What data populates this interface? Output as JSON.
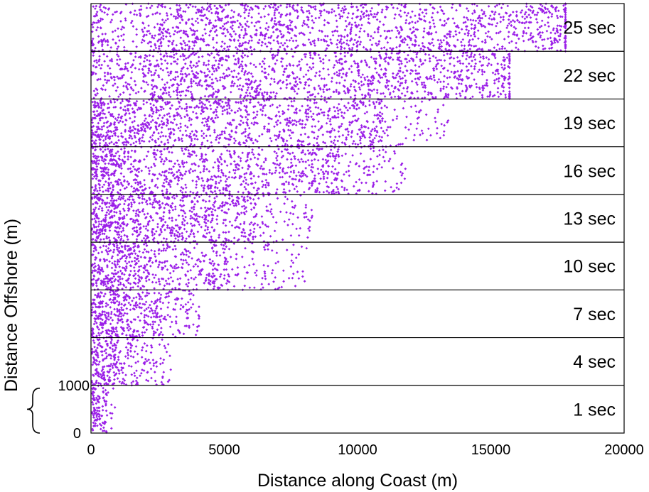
{
  "chart_data": {
    "type": "scatter",
    "xlabel": "Distance along Coast (m)",
    "ylabel": "Distance Offshore (m)",
    "xlim": [
      0,
      20000
    ],
    "xticks": [
      "0",
      "5000",
      "10000",
      "15000",
      "20000"
    ],
    "panel_ylim": [
      0,
      1000
    ],
    "yticks": [
      "0",
      "1000"
    ],
    "marker_color": "#9b1fe8",
    "grid": false,
    "legend": "none",
    "panels": [
      {
        "label": "25 sec",
        "max_extent_x": 17800,
        "x_center": 10500
      },
      {
        "label": "22 sec",
        "max_extent_x": 15700,
        "x_center": 9000
      },
      {
        "label": "19 sec",
        "max_extent_x": 13400,
        "x_center": 5000
      },
      {
        "label": "16 sec",
        "max_extent_x": 11800,
        "x_center": 4000
      },
      {
        "label": "13 sec",
        "max_extent_x": 8300,
        "x_center": 2500
      },
      {
        "label": "10 sec",
        "max_extent_x": 8200,
        "x_center": 1500
      },
      {
        "label": "7 sec",
        "max_extent_x": 4100,
        "x_center": 800
      },
      {
        "label": "4 sec",
        "max_extent_x": 3000,
        "x_center": 400
      },
      {
        "label": "1 sec",
        "max_extent_x": 900,
        "x_center": 200
      }
    ]
  }
}
